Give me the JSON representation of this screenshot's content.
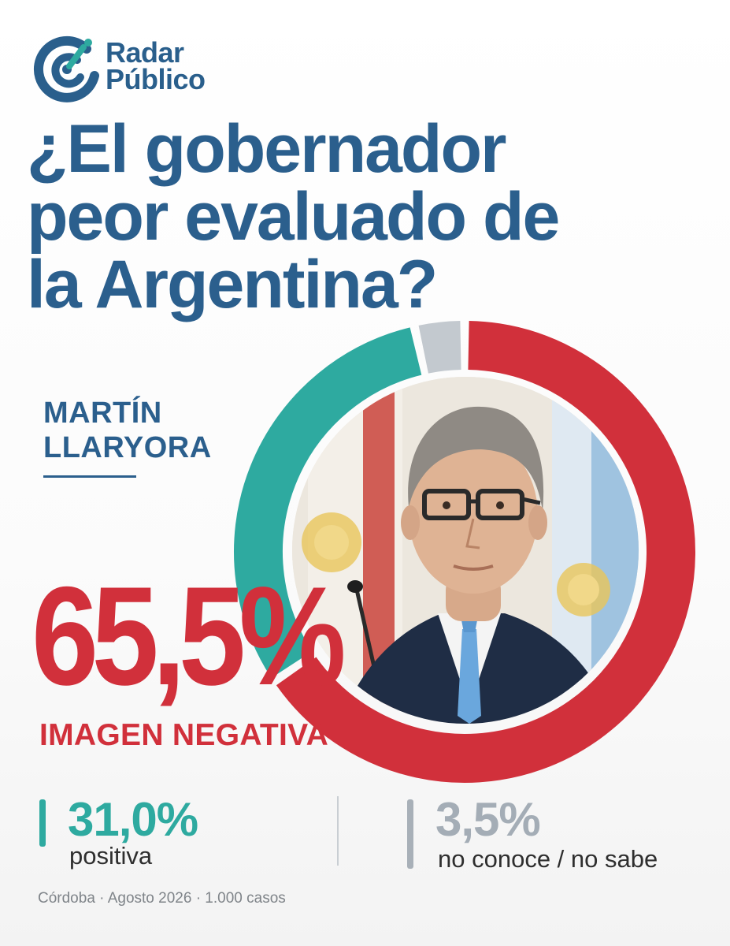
{
  "brand": {
    "line1": "Radar",
    "line2": "Público",
    "logo_color": "#2a5f8c",
    "logo_accent": "#2eaaa0"
  },
  "headline": {
    "line1": "¿El gobernador",
    "line2": "peor evaluado de",
    "line3": "la Argentina?"
  },
  "person": {
    "first_name": "MARTÍN",
    "last_name": "LLARYORA"
  },
  "main_stat": {
    "value": "65,5%",
    "label": "IMAGEN NEGATIVA"
  },
  "secondary_stats": [
    {
      "value": "31,0%",
      "label": "positiva"
    },
    {
      "value": "3,5%",
      "label": "no conoce / no sabe"
    }
  ],
  "footer": "Córdoba · Agosto 2026 · 1.000 casos",
  "colors": {
    "negative": "#d1303b",
    "positive": "#2eaaa0",
    "unknown": "#c3c9cf",
    "headline": "#2b5f8d"
  },
  "chart_data": {
    "type": "pie",
    "categories": [
      "IMAGEN NEGATIVA",
      "positiva",
      "no conoce / no sabe"
    ],
    "values": [
      65.5,
      31.0,
      3.5
    ],
    "colors": [
      "#d1303b",
      "#2eaaa0",
      "#c3c9cf"
    ]
  }
}
